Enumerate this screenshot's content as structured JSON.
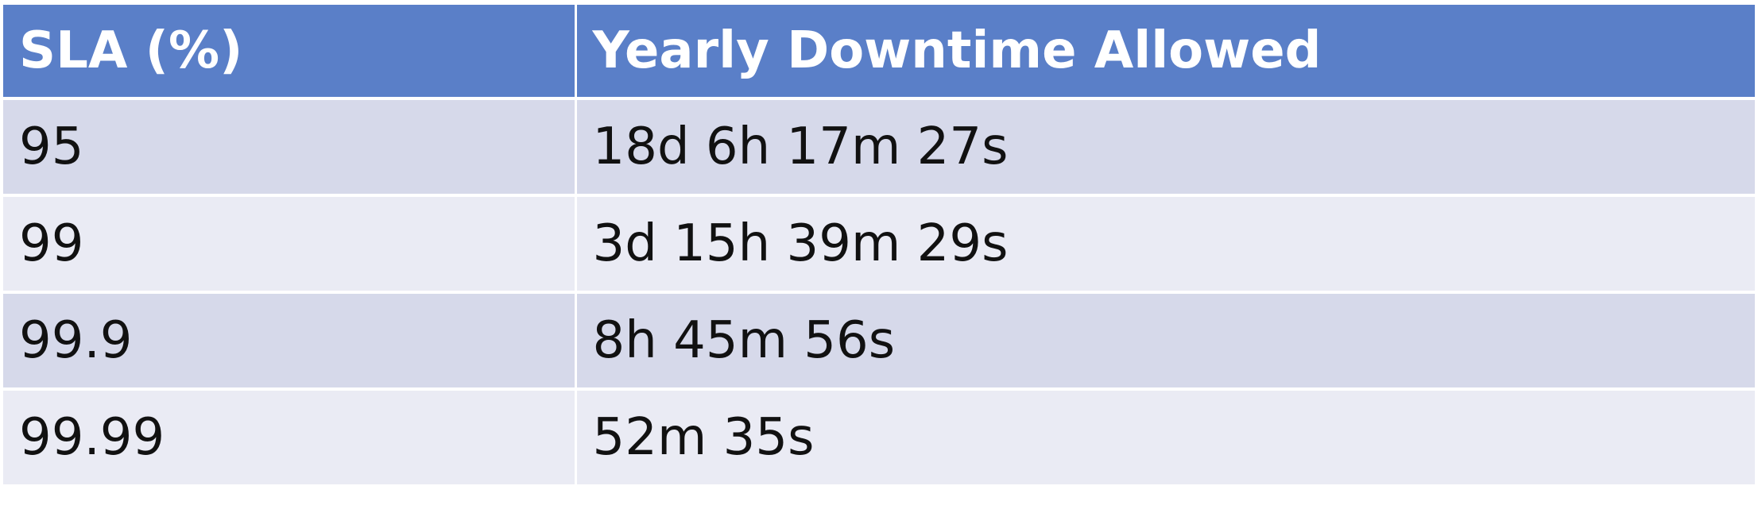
{
  "table": {
    "headers": [
      "SLA (%)",
      "Yearly Downtime Allowed"
    ],
    "rows": [
      [
        "95",
        "18d 6h 17m 27s"
      ],
      [
        "99",
        "3d 15h 39m 29s"
      ],
      [
        "99.9",
        "8h 45m 56s"
      ],
      [
        "99.99",
        "52m 35s"
      ]
    ]
  },
  "colors": {
    "header_bg": "#5a7fc8",
    "row_band_dark": "#d6d9ea",
    "row_band_light": "#eaebf4"
  }
}
